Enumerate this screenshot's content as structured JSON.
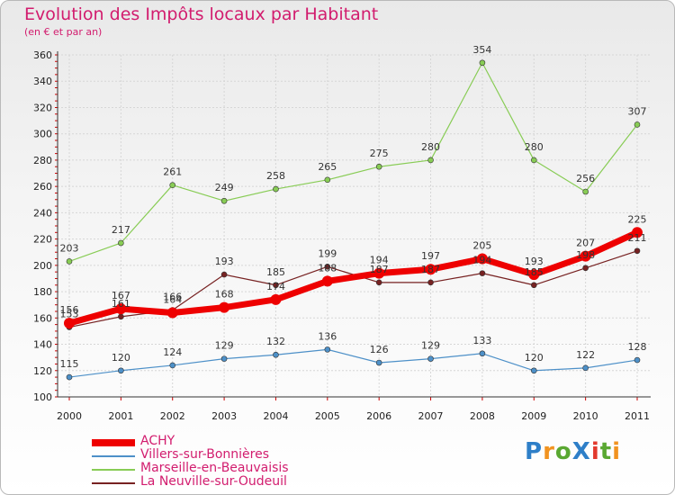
{
  "header": {
    "title": "Evolution des Impôts locaux par Habitant",
    "subtitle": "(en € et par an)"
  },
  "brand": {
    "text": "ProXiti",
    "colors": [
      "#2e7fc8",
      "#f19320",
      "#5aa832",
      "#2e7fc8",
      "#e2392d",
      "#5aa832",
      "#f19320"
    ]
  },
  "chart_data": {
    "type": "line",
    "title": "Evolution des Impôts locaux par Habitant",
    "subtitle": "(en € et par an)",
    "xlabel": "",
    "ylabel": "",
    "categories": [
      "2000",
      "2001",
      "2002",
      "2003",
      "2004",
      "2005",
      "2006",
      "2007",
      "2008",
      "2009",
      "2010",
      "2011"
    ],
    "ylim": [
      100,
      360
    ],
    "yticks": [
      100,
      120,
      140,
      160,
      180,
      200,
      220,
      240,
      260,
      280,
      300,
      320,
      340,
      360
    ],
    "grid": true,
    "legend_position": "bottom-left",
    "series": [
      {
        "name": "ACHY",
        "color": "#ee0000",
        "values": [
          156,
          167,
          164,
          168,
          174,
          188,
          194,
          197,
          205,
          193,
          207,
          225
        ]
      },
      {
        "name": "Villers-sur-Bonnières",
        "color": "#4d90c8",
        "values": [
          115,
          120,
          124,
          129,
          132,
          136,
          126,
          129,
          133,
          120,
          122,
          128
        ]
      },
      {
        "name": "Marseille-en-Beauvaisis",
        "color": "#88cc55",
        "values": [
          203,
          217,
          261,
          249,
          258,
          265,
          275,
          280,
          354,
          280,
          256,
          307
        ]
      },
      {
        "name": "La Neuville-sur-Oudeuil",
        "color": "#772222",
        "values": [
          153,
          161,
          166,
          193,
          185,
          199,
          187,
          187,
          194,
          185,
          198,
          211
        ]
      }
    ]
  }
}
